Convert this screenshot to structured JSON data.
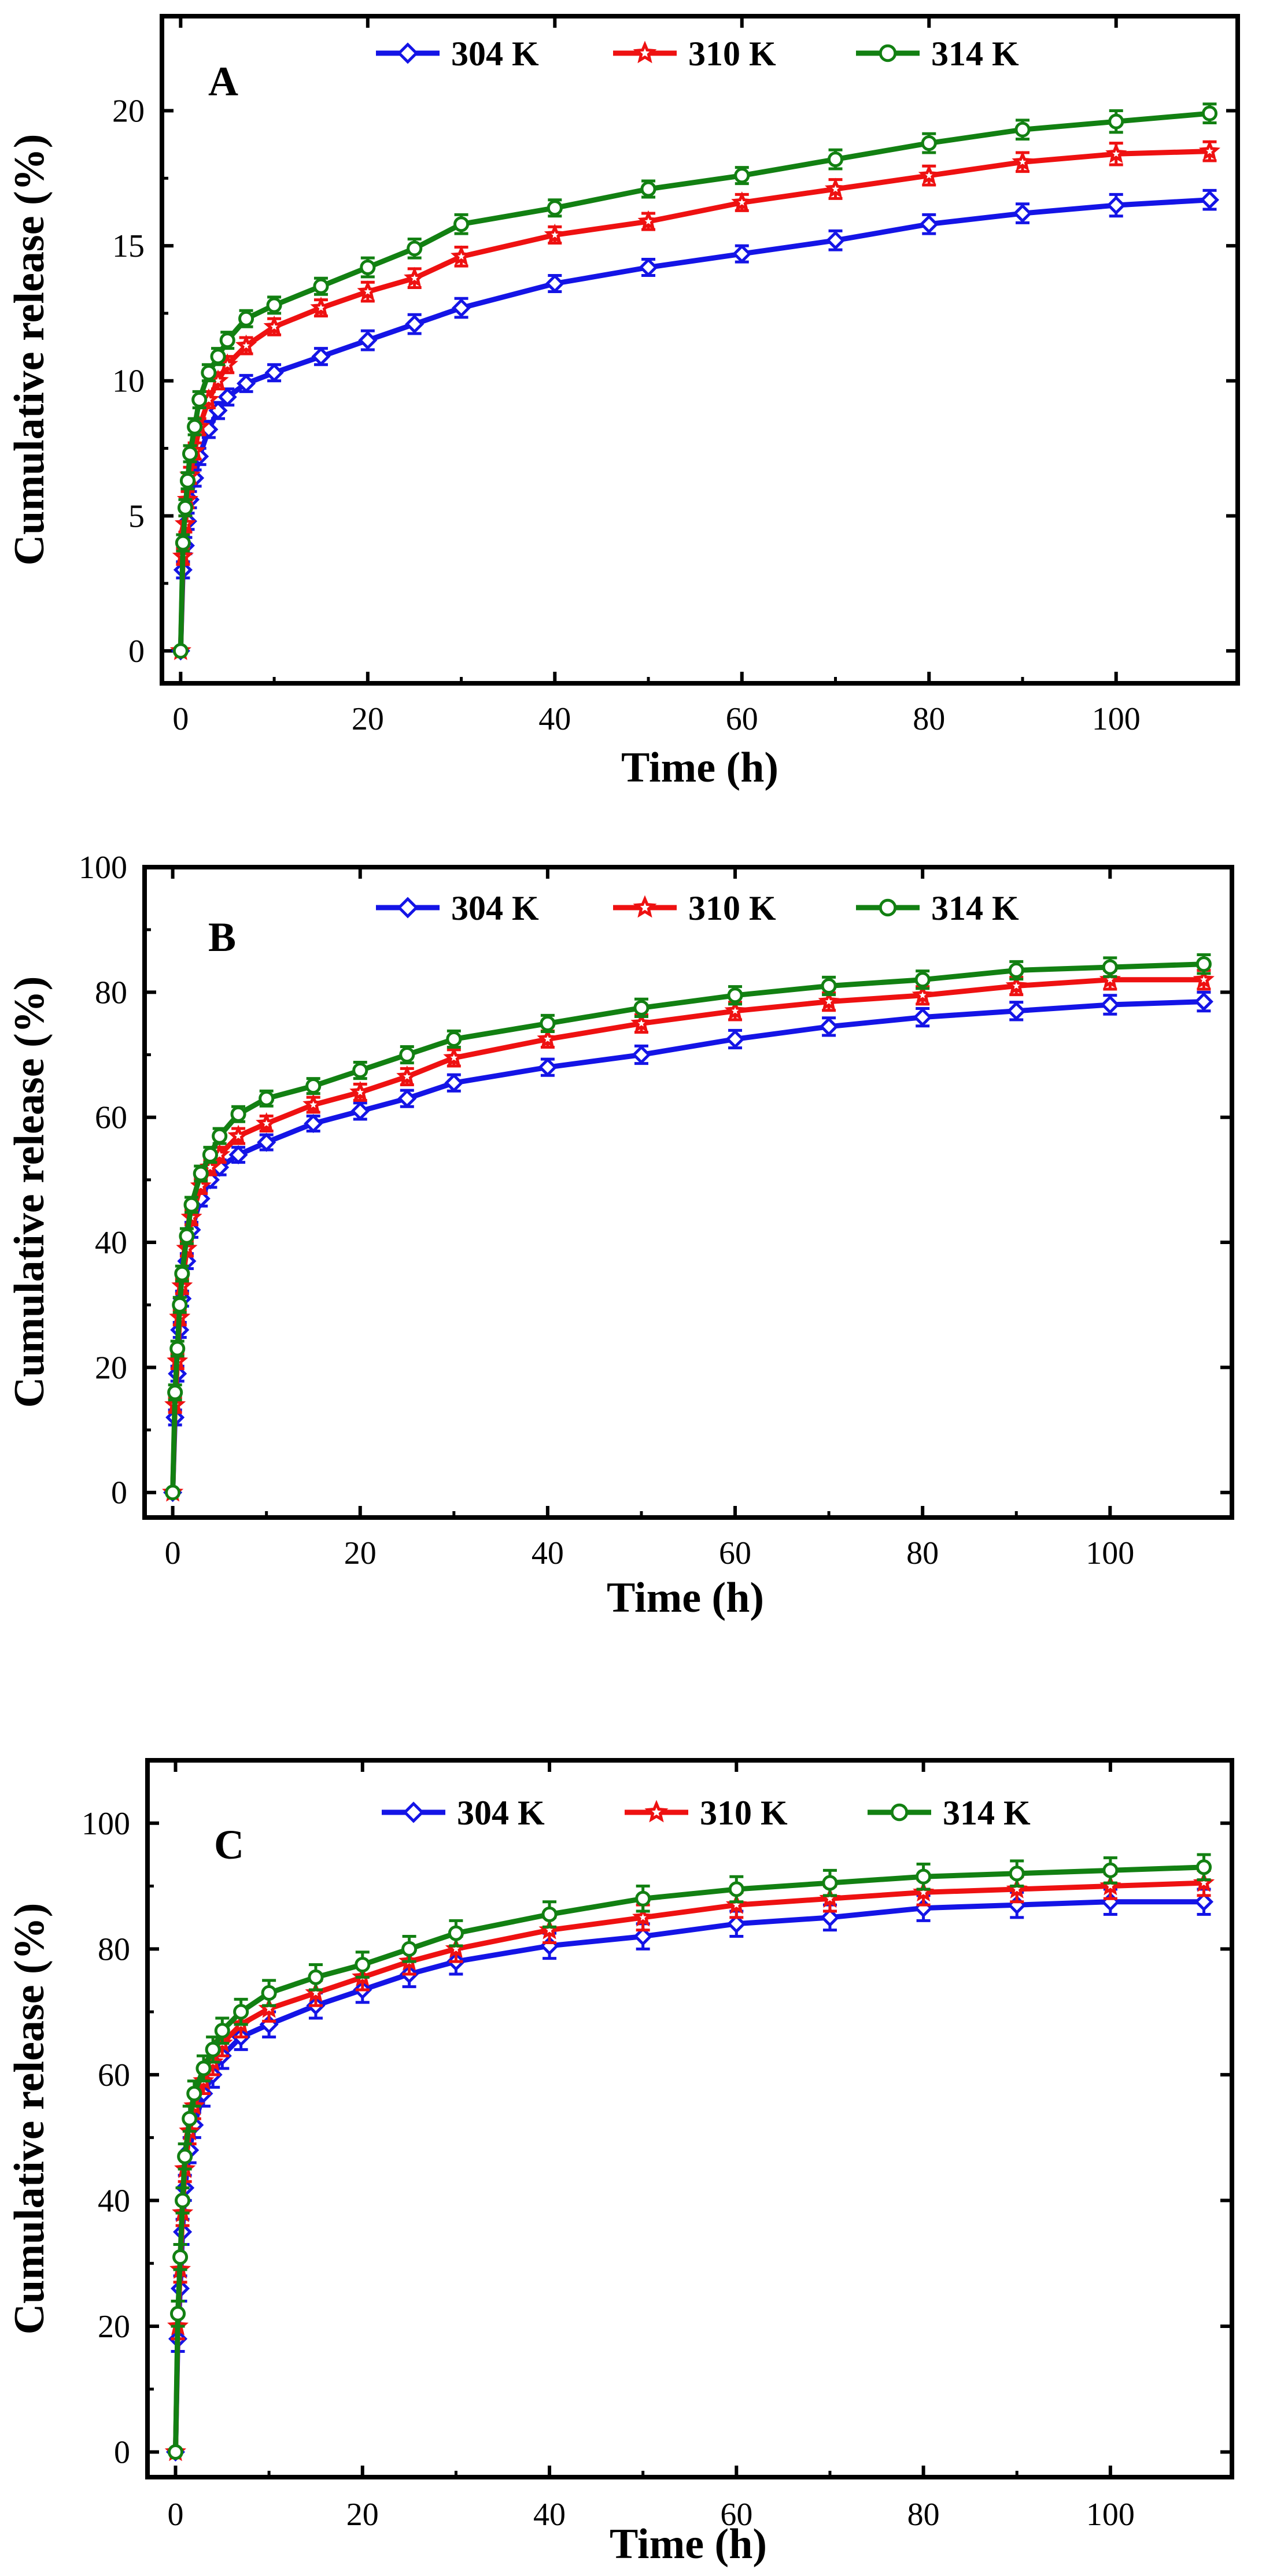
{
  "figure": {
    "series_styles": [
      {
        "name": "304 K",
        "color": "#1414e6",
        "marker": "diamond"
      },
      {
        "name": "310 K",
        "color": "#ee1111",
        "marker": "star"
      },
      {
        "name": "314 K",
        "color": "#128012",
        "marker": "circle"
      }
    ]
  },
  "chart_data": [
    {
      "type": "line",
      "panel": "A",
      "title": "A",
      "xlabel": "Time (h)",
      "ylabel": "Cumulative release (%)",
      "xlim": [
        -2,
        113
      ],
      "ylim": [
        -1.2,
        23.5
      ],
      "xticks": [
        0,
        20,
        40,
        60,
        80,
        100
      ],
      "yticks": [
        0,
        5,
        10,
        15,
        20
      ],
      "xtick_labels": [
        "0",
        "20",
        "40",
        "60",
        "80",
        "100"
      ],
      "ytick_labels": [
        "0",
        "5",
        "10",
        "15",
        "20"
      ],
      "legend": [
        "304 K",
        "310 K",
        "314 K"
      ],
      "legend_position": "top",
      "x": [
        0,
        0.25,
        0.5,
        0.75,
        1,
        1.5,
        2,
        3,
        4,
        5,
        7,
        10,
        15,
        20,
        25,
        30,
        40,
        50,
        60,
        70,
        80,
        90,
        100,
        110
      ],
      "series": [
        {
          "name": "304 K",
          "values": [
            0,
            3.0,
            3.9,
            4.8,
            5.6,
            6.4,
            7.2,
            8.2,
            8.9,
            9.4,
            9.9,
            10.3,
            10.9,
            11.5,
            12.1,
            12.7,
            13.6,
            14.2,
            14.7,
            15.2,
            15.8,
            16.2,
            16.5,
            16.7
          ]
        },
        {
          "name": "310 K",
          "values": [
            0,
            3.5,
            4.7,
            5.6,
            6.5,
            7.4,
            8.3,
            9.3,
            10.0,
            10.6,
            11.3,
            12.0,
            12.7,
            13.3,
            13.8,
            14.6,
            15.4,
            15.9,
            16.6,
            17.1,
            17.6,
            18.1,
            18.4,
            18.5
          ]
        },
        {
          "name": "314 K",
          "values": [
            0,
            4.0,
            5.3,
            6.3,
            7.3,
            8.3,
            9.3,
            10.3,
            10.9,
            11.5,
            12.3,
            12.8,
            13.5,
            14.2,
            14.9,
            15.8,
            16.4,
            17.1,
            17.6,
            18.2,
            18.8,
            19.3,
            19.6,
            19.9
          ]
        }
      ],
      "error": [
        0,
        0.3,
        0.3,
        0.3,
        0.3,
        0.3,
        0.3,
        0.3,
        0.3,
        0.3,
        0.3,
        0.3,
        0.3,
        0.35,
        0.35,
        0.35,
        0.3,
        0.3,
        0.3,
        0.35,
        0.35,
        0.35,
        0.4,
        0.35
      ]
    },
    {
      "type": "line",
      "panel": "B",
      "title": "B",
      "xlabel": "Time (h)",
      "ylabel": "Cumulative release (%)",
      "xlim": [
        -3,
        113
      ],
      "ylim": [
        -4,
        100
      ],
      "xticks": [
        0,
        20,
        40,
        60,
        80,
        100
      ],
      "yticks": [
        0,
        20,
        40,
        60,
        80,
        100
      ],
      "xtick_labels": [
        "0",
        "20",
        "40",
        "60",
        "80",
        "100"
      ],
      "ytick_labels": [
        "0",
        "20",
        "40",
        "60",
        "80",
        "100"
      ],
      "legend": [
        "304 K",
        "310 K",
        "314 K"
      ],
      "legend_position": "top",
      "x": [
        0,
        0.25,
        0.5,
        0.75,
        1,
        1.5,
        2,
        3,
        4,
        5,
        7,
        10,
        15,
        20,
        25,
        30,
        40,
        50,
        60,
        70,
        80,
        90,
        100,
        110
      ],
      "series": [
        {
          "name": "304 K",
          "values": [
            0,
            12,
            19,
            26,
            31,
            37,
            42,
            47,
            50,
            52,
            54,
            56,
            59,
            61,
            63,
            65.5,
            68,
            70,
            72.5,
            74.5,
            76,
            77,
            78,
            78.5
          ]
        },
        {
          "name": "310 K",
          "values": [
            0,
            14,
            21,
            28,
            33,
            39,
            44,
            49,
            52,
            54,
            57,
            59,
            62,
            64,
            66.5,
            69.5,
            72.5,
            75,
            77,
            78.5,
            79.5,
            81,
            82,
            82
          ]
        },
        {
          "name": "314 K",
          "values": [
            0,
            16,
            23,
            30,
            35,
            41,
            46,
            51,
            54,
            57,
            60.5,
            63,
            65,
            67.5,
            70,
            72.5,
            75,
            77.5,
            79.5,
            81,
            82,
            83.5,
            84,
            84.5
          ]
        }
      ],
      "error": [
        0,
        1.2,
        1.2,
        1.2,
        1.2,
        1.2,
        1.2,
        1.2,
        1.2,
        1.2,
        1.2,
        1.2,
        1.2,
        1.3,
        1.3,
        1.3,
        1.3,
        1.4,
        1.4,
        1.4,
        1.4,
        1.4,
        1.5,
        1.5
      ]
    },
    {
      "type": "line",
      "panel": "C",
      "title": "C",
      "xlabel": "Time (h)",
      "ylabel": "Cumulative release (%)",
      "xlim": [
        -3,
        113
      ],
      "ylim": [
        -4,
        110
      ],
      "xticks": [
        0,
        20,
        40,
        60,
        80,
        100
      ],
      "yticks": [
        0,
        20,
        40,
        60,
        80,
        100
      ],
      "xtick_labels": [
        "0",
        "20",
        "40",
        "60",
        "80",
        "100"
      ],
      "ytick_labels": [
        "0",
        "20",
        "40",
        "60",
        "80",
        "100"
      ],
      "legend": [
        "304 K",
        "310 K",
        "314 K"
      ],
      "legend_position": "top",
      "x": [
        0,
        0.25,
        0.5,
        0.75,
        1,
        1.5,
        2,
        3,
        4,
        5,
        7,
        10,
        15,
        20,
        25,
        30,
        40,
        50,
        60,
        70,
        80,
        90,
        100,
        110
      ],
      "series": [
        {
          "name": "304 K",
          "values": [
            0,
            18,
            26,
            35,
            42,
            48,
            52,
            57,
            60,
            63,
            66,
            68,
            71,
            73.5,
            76,
            78,
            80.5,
            82,
            84,
            85,
            86.5,
            87,
            87.5,
            87.5
          ]
        },
        {
          "name": "310 K",
          "values": [
            0,
            20,
            29,
            38,
            45,
            51,
            55,
            59,
            62,
            65,
            68,
            70.5,
            73,
            75.5,
            78,
            80,
            83,
            85,
            87,
            88,
            89,
            89.5,
            90,
            90.5
          ]
        },
        {
          "name": "314 K",
          "values": [
            0,
            22,
            31,
            40,
            47,
            53,
            57,
            61,
            64,
            67,
            70,
            73,
            75.5,
            77.5,
            80,
            82.5,
            85.5,
            88,
            89.5,
            90.5,
            91.5,
            92,
            92.5,
            93
          ]
        }
      ],
      "error": [
        0,
        2,
        2,
        2,
        2,
        2,
        2,
        2,
        2,
        2,
        2,
        2,
        2,
        2,
        2,
        2,
        2,
        2,
        2,
        2,
        2,
        2,
        2,
        2
      ]
    }
  ]
}
